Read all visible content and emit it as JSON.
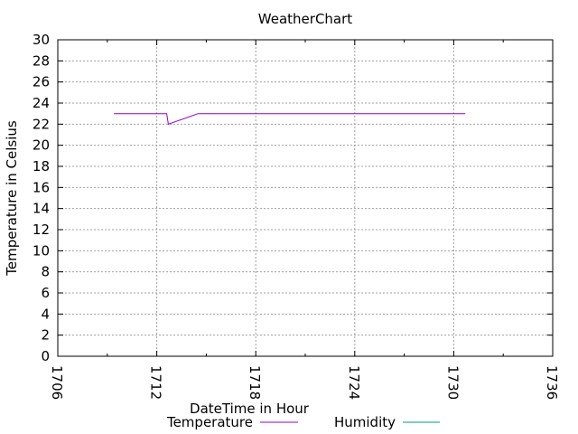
{
  "chart_data": {
    "type": "line",
    "title": "WeatherChart",
    "xlabel": "DateTime in Hour",
    "ylabel": "Temperature in Celsius",
    "xlim": [
      1706,
      1736
    ],
    "ylim": [
      0,
      30
    ],
    "x_ticks": [
      "1706",
      "1712",
      "1718",
      "1724",
      "1730",
      "1736"
    ],
    "y_ticks": [
      "0",
      "2",
      "4",
      "6",
      "8",
      "10",
      "12",
      "14",
      "16",
      "18",
      "20",
      "22",
      "24",
      "26",
      "28",
      "30"
    ],
    "x_tick_values": [
      1706,
      1712,
      1718,
      1724,
      1730,
      1736
    ],
    "y_tick_values": [
      0,
      2,
      4,
      6,
      8,
      10,
      12,
      14,
      16,
      18,
      20,
      22,
      24,
      26,
      28,
      30
    ],
    "grid": true,
    "legend_position": "bottom",
    "series": [
      {
        "name": "Temperature",
        "color": "#9400d3",
        "x": [
          1709.4,
          1712.6,
          1712.7,
          1714.5,
          1730.7
        ],
        "y": [
          23,
          23,
          22,
          23,
          23
        ]
      },
      {
        "name": "Humidity",
        "color": "#009e73",
        "x": [],
        "y": []
      }
    ]
  }
}
